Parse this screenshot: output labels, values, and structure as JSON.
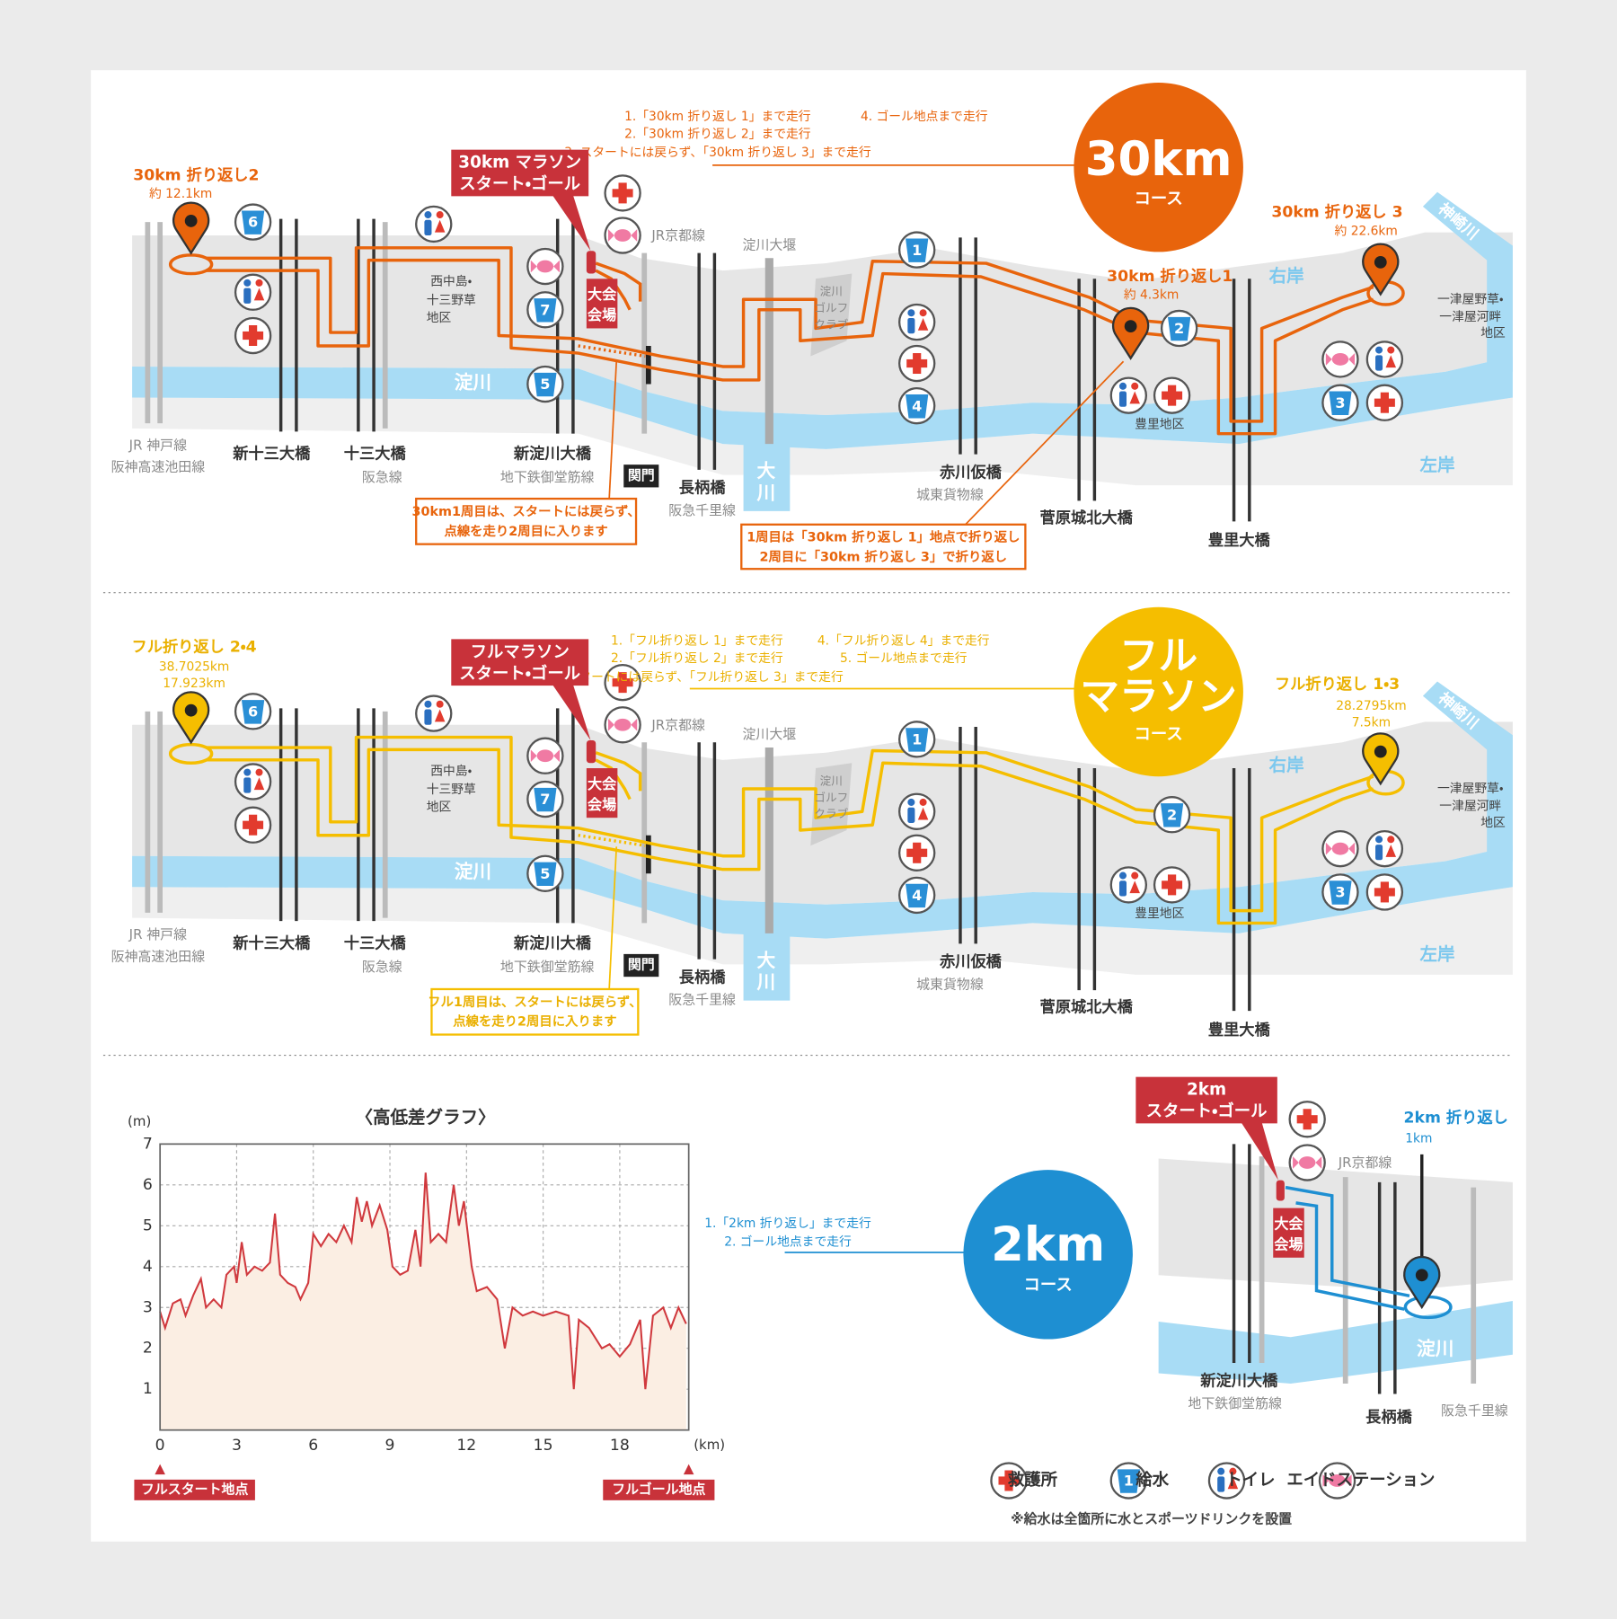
{
  "map": {
    "yodogawa": "淀川",
    "jr_kobe": "JR 神戸線",
    "hanshin": "阪神高速池田線",
    "shinjuso": "新十三大橋",
    "juso": "十三大橋",
    "hankyu": "阪急線",
    "shinyodo": "新淀川大橋",
    "midosuji": "地下鉄御堂筋線",
    "nishinaka": [
      "西中島・",
      "十三野草",
      "地区"
    ],
    "venue": [
      "大会",
      "会場"
    ],
    "jr_kyoto": "JR京都線",
    "weir": "淀川大堰",
    "golf": [
      "淀川",
      "ゴルフ",
      "クラブ"
    ],
    "okawa": [
      "大",
      "川"
    ],
    "gate": "関門",
    "nagara": "長柄橋",
    "senri": "阪急千里線",
    "akagawa": "赤川仮橋",
    "joto": "城東貨物線",
    "sugawara": "菅原城北大橋",
    "toyosato_area": "豊里地区",
    "toyosato": "豊里大橋",
    "right_bank": "右岸",
    "left_bank": "左岸",
    "kanzaki": "神崎川",
    "hitotsuya": [
      "一津屋野草・",
      "一津屋河畔",
      "地区"
    ],
    "water_numbers": [
      6,
      7,
      5,
      1,
      4,
      2,
      3
    ]
  },
  "course_30km": {
    "badge": [
      "30km"
    ],
    "badge_sub": "コース",
    "instructions": [
      "1.「30km 折り返し 1」まで走行",
      "2.「30km 折り返し 2」まで走行",
      "3. スタートには戻らず、「30km 折り返し 3」まで走行",
      "4. ゴール地点まで走行"
    ],
    "start_goal": [
      "30km マラソン",
      "スタート・ゴール"
    ],
    "turns": [
      {
        "label": "30km 折り返し2",
        "distance": [
          "約 12.1km"
        ]
      },
      {
        "label": "30km 折り返し1",
        "distance": [
          "約 4.3km"
        ]
      },
      {
        "label": "30km 折り返し 3",
        "distance": [
          "約 22.6km"
        ]
      }
    ],
    "notes": [
      [
        "30km1周目は、スタートには戻らず、",
        "点線を走り2周目に入ります"
      ],
      [
        "1周目は「30km 折り返し 1」地点で折り返し",
        "2周目に「30km 折り返し 3」で折り返し"
      ]
    ]
  },
  "course_full": {
    "badge": [
      "フル",
      "マラソン"
    ],
    "badge_sub": "コース",
    "instructions": [
      "1.「フル折り返し 1」まで走行",
      "2.「フル折り返し 2」まで走行",
      "3. スタートには戻らず、「フル折り返し 3」まで走行",
      "4.「フル折り返し 4」まで走行",
      "5. ゴール地点まで走行"
    ],
    "start_goal": [
      "フルマラソン",
      "スタート・ゴール"
    ],
    "turns": [
      {
        "label": "フル折り返し 2・4",
        "distance": [
          "38.7025km",
          "17.923km"
        ]
      },
      {
        "label": "フル折り返し 1・3",
        "distance": [
          "28.2795km",
          "7.5km"
        ]
      }
    ],
    "notes": [
      [
        "フル1周目は、スタートには戻らず、",
        "点線を走り2周目に入ります"
      ]
    ]
  },
  "course_2km": {
    "badge": [
      "2km"
    ],
    "badge_sub": "コース",
    "instructions": [
      "1.「2km 折り返し」まで走行",
      "2. ゴール地点まで走行"
    ],
    "start_goal": [
      "2km",
      "スタート・ゴール"
    ],
    "turns": [
      {
        "label": "2km 折り返し",
        "distance": [
          "1km"
        ]
      }
    ]
  },
  "chart_data": {
    "type": "line",
    "title": "〈高低差グラフ〉",
    "y_unit": "(m)",
    "x_unit": "(km)",
    "color": "#d0393e",
    "fill": "#fbeee3",
    "grid": true,
    "x": [
      0,
      0.2,
      0.5,
      0.8,
      1.0,
      1.3,
      1.6,
      1.8,
      2.1,
      2.4,
      2.6,
      2.9,
      3.0,
      3.2,
      3.4,
      3.7,
      4.0,
      4.3,
      4.5,
      4.7,
      5.0,
      5.3,
      5.5,
      5.8,
      6.0,
      6.3,
      6.6,
      6.9,
      7.2,
      7.5,
      7.7,
      7.9,
      8.1,
      8.3,
      8.6,
      8.9,
      9.1,
      9.4,
      9.7,
      10.0,
      10.2,
      10.4,
      10.6,
      10.9,
      11.2,
      11.5,
      11.7,
      11.9,
      12.2,
      12.4,
      12.8,
      13.2,
      13.5,
      13.8,
      14.2,
      14.6,
      15.0,
      15.5,
      16.0,
      16.2,
      16.4,
      16.8,
      17.3,
      17.6,
      18.0,
      18.4,
      18.8,
      19.0,
      19.3,
      19.7,
      20.0,
      20.3,
      20.6
    ],
    "values": [
      2.9,
      2.5,
      3.1,
      3.2,
      2.8,
      3.3,
      3.7,
      3.0,
      3.2,
      3.0,
      3.8,
      4.0,
      3.6,
      4.6,
      3.8,
      4.0,
      3.9,
      4.1,
      5.3,
      3.8,
      3.6,
      3.5,
      3.2,
      3.6,
      4.8,
      4.5,
      4.8,
      4.6,
      5.0,
      4.6,
      5.7,
      5.1,
      5.6,
      5.0,
      5.5,
      4.9,
      4.0,
      3.8,
      3.9,
      4.9,
      4.0,
      6.3,
      4.6,
      4.8,
      4.6,
      6.0,
      5.0,
      5.6,
      4.0,
      3.4,
      3.5,
      3.2,
      2.0,
      3.0,
      2.8,
      2.9,
      2.8,
      2.9,
      2.8,
      1.0,
      2.7,
      2.5,
      2.0,
      2.1,
      1.8,
      2.1,
      2.7,
      1.0,
      2.8,
      3.0,
      2.5,
      3.0,
      2.6
    ],
    "xlim": [
      0,
      20.7
    ],
    "ylim": [
      0,
      7
    ],
    "xticks": [
      0,
      3,
      6,
      9,
      12,
      15,
      18
    ],
    "yticks": [
      1,
      2,
      3,
      4,
      5,
      6,
      7
    ],
    "start_label": "フルスタート地点",
    "goal_label": "フルゴール地点"
  },
  "legend": {
    "items": [
      "救護所",
      "給水",
      "トイレ",
      "エイドステーション"
    ],
    "water_number": 1,
    "note": "※給水は全箇所に水とスポーツドリンクを設置"
  }
}
